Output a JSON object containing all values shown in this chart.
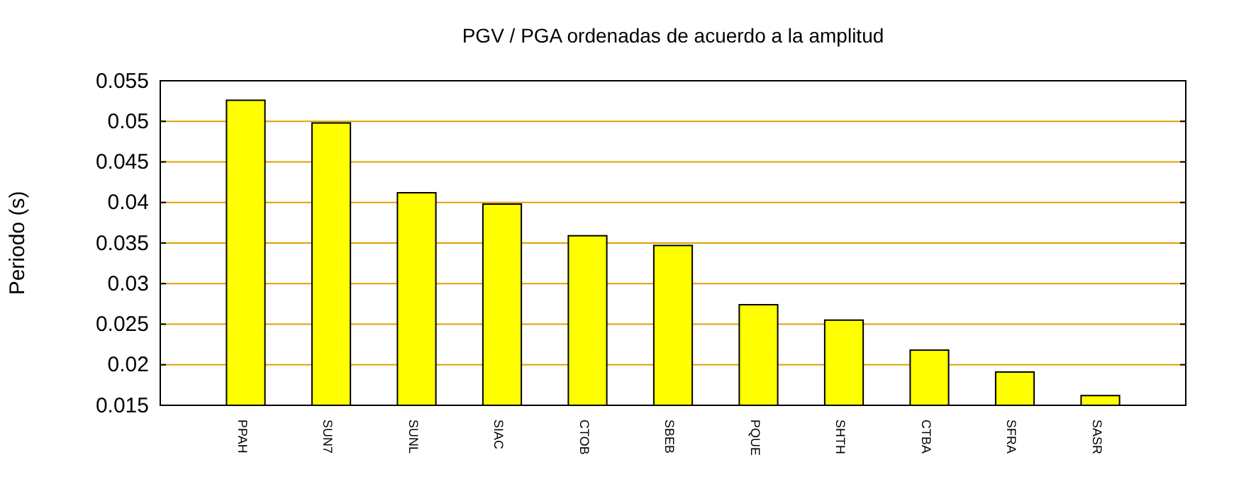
{
  "chart_data": {
    "type": "bar",
    "title": "PGV / PGA ordenadas de acuerdo a la amplitud",
    "ylabel": "Periodo (s)",
    "categories": [
      "PPAH",
      "SUN7",
      "SUNL",
      "SIAC",
      "CTOB",
      "SBEB",
      "PQUE",
      "SHTH",
      "CTBA",
      "SFRA",
      "SASR"
    ],
    "values": [
      0.0526,
      0.0498,
      0.0412,
      0.0398,
      0.0359,
      0.0347,
      0.0274,
      0.0255,
      0.0218,
      0.0191,
      0.0162
    ],
    "color": "#ffff00",
    "ylim": [
      0.015,
      0.055
    ],
    "yticks": [
      0.015,
      0.02,
      0.025,
      0.03,
      0.035,
      0.04,
      0.045,
      0.05,
      0.055
    ],
    "grid": true
  }
}
